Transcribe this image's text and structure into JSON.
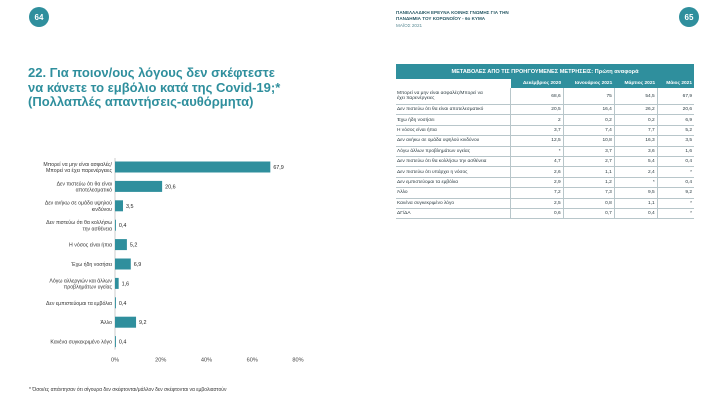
{
  "header": {
    "page_left": "64",
    "page_right": "65",
    "survey_line1": "ΠΑΝΕΛΛΑΔΙΚΗ ΕΡΕΥΝΑ ΚΟΙΝΗΣ ΓΝΩΜΗΣ ΓΙΑ ΤΗΝ",
    "survey_line2": "ΠΑΝΔΗΜΙΑ ΤΟΥ ΚΟΡΩΝΟΪΟΥ - 6ο ΚΥΜΑ",
    "survey_date": "ΜΑΪΟΣ 2021"
  },
  "question": {
    "line1": "22. Για ποιον/ους λόγους δεν σκέφτεστε",
    "line2": "να κάνετε το εμβόλιο κατά της Covid-19;*",
    "line3": "(Πολλαπλές απαντήσεις-αυθόρμητα)"
  },
  "chart_data": {
    "type": "bar",
    "orientation": "horizontal",
    "categories": [
      [
        "Μπορεί να μην είναι ασφαλές/",
        "Μπορεί να έχει παρενέργειες"
      ],
      [
        "Δεν πιστεύω ότι θα είναι",
        "αποτελεσματικό"
      ],
      [
        "Δεν ανήκω σε ομάδα υψηλού",
        "κινδύνου"
      ],
      [
        "Δεν πιστεύω ότι θα κολλήσω",
        "την ασθένεια"
      ],
      [
        "Η νόσος είναι ήπια"
      ],
      [
        "Έχω ήδη νοσήσει"
      ],
      [
        "Λόγω αλλεργιών και άλλων",
        "προβλημάτων υγείας"
      ],
      [
        "Δεν εμπιστεύομαι τα εμβόλια"
      ],
      [
        "Άλλο"
      ],
      [
        "Κανένα συγκεκριμένο λόγο"
      ]
    ],
    "values": [
      67.9,
      20.6,
      3.5,
      0.4,
      5.2,
      6.9,
      1.6,
      0.4,
      9.2,
      0.4
    ],
    "value_labels": [
      "67,9",
      "20,6",
      "3,5",
      "0,4",
      "5,2",
      "6,9",
      "1,6",
      "0,4",
      "9,2",
      "0,4"
    ],
    "xlim": [
      0,
      80
    ],
    "xticks": [
      0,
      20,
      40,
      60,
      80
    ],
    "xtick_labels": [
      "0%",
      "20%",
      "40%",
      "60%",
      "80%"
    ],
    "bar_color": "#2f8f9d",
    "grid": false
  },
  "table": {
    "title": "ΜΕΤΑΒΟΛΕΣ ΑΠΟ ΤΙΣ ΠΡΟΗΓΟΥΜΕΝΕΣ ΜΕΤΡΗΣΕΙΣ: Πρώτη αναφορά",
    "columns": [
      "Δεκέμβριος 2020",
      "Ιανουάριος 2021",
      "Μάρτιος 2021",
      "Μάιος 2021"
    ],
    "rows": [
      {
        "label": [
          "Μπορεί να μην είναι ασφαλές/Μπορεί να",
          "έχει παρενέργειες"
        ],
        "values": [
          "68,6",
          "75",
          "54,5",
          "67,9"
        ]
      },
      {
        "label": [
          "Δεν πιστεύω ότι θα είναι αποτελεσματικό"
        ],
        "values": [
          "20,5",
          "16,4",
          "26,2",
          "20,6"
        ]
      },
      {
        "label": [
          "Έχω ήδη νοσήσει"
        ],
        "values": [
          "2",
          "0,2",
          "0,2",
          "6,9"
        ]
      },
      {
        "label": [
          "Η νόσος είναι ήπια"
        ],
        "values": [
          "3,7",
          "7,4",
          "7,7",
          "5,2"
        ]
      },
      {
        "label": [
          "Δεν ανήκω σε ομάδα υψηλού κινδύνου"
        ],
        "values": [
          "12,5",
          "10,8",
          "16,3",
          "3,5"
        ]
      },
      {
        "label": [
          "Λόγω άλλων προβλημάτων υγείας"
        ],
        "values": [
          "*",
          "3,7",
          "3,6",
          "1,6"
        ]
      },
      {
        "label": [
          "Δεν πιστεύω ότι θα κολλήσω την ασθένεια"
        ],
        "values": [
          "4,7",
          "2,7",
          "5,4",
          "0,4"
        ]
      },
      {
        "label": [
          "Δεν πιστεύω ότι υπάρχει η νόσος"
        ],
        "values": [
          "2,6",
          "1,1",
          "2,4",
          "*"
        ]
      },
      {
        "label": [
          "Δεν εμπιστεύομαι τα εμβόλια"
        ],
        "values": [
          "2,9",
          "1,2",
          "*",
          "0,4"
        ]
      },
      {
        "label": [
          "Άλλο"
        ],
        "values": [
          "7,2",
          "7,3",
          "9,5",
          "9,2"
        ]
      },
      {
        "label": [
          "Κανένα συγκεκριμένο λόγο"
        ],
        "values": [
          "2,5",
          "0,8",
          "1,1",
          "*"
        ]
      },
      {
        "label": [
          "ΔΓ/ΔΑ"
        ],
        "values": [
          "0,6",
          "0,7",
          "0,4",
          "*"
        ]
      }
    ]
  },
  "footnote": "* Όσοι/ες απάντησαν ότι σίγουρα δεν σκέφτονται/μάλλον δεν σκέφτονται να εμβολιαστούν"
}
